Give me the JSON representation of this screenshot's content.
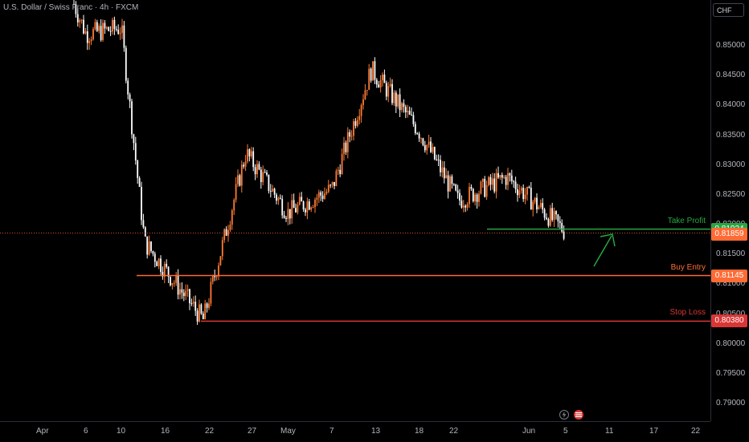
{
  "symbol_title": "U.S. Dollar / Swiss Franc · 4h · FXCM",
  "currency_button": "CHF",
  "colors": {
    "up": "#ff7a33",
    "down": "#ffffff",
    "take_profit": "#26a641",
    "buy_entry": "#ff6b35",
    "stop_loss": "#d93636",
    "last_price": "#ff6b35",
    "arrow": "#26a641"
  },
  "price_scale": {
    "ticks": [
      "0.85000",
      "0.84500",
      "0.84000",
      "0.83500",
      "0.83000",
      "0.82500",
      "0.82000",
      "0.81500",
      "0.81000",
      "0.80500",
      "0.80000",
      "0.79500",
      "0.79000"
    ]
  },
  "time_scale": {
    "ticks": [
      "Apr",
      "6",
      "10",
      "16",
      "22",
      "27",
      "May",
      "7",
      "13",
      "18",
      "22",
      "Jun",
      "5",
      "11",
      "17",
      "22"
    ]
  },
  "levels": {
    "take_profit": {
      "label": "Take Profit",
      "price": "0.81924"
    },
    "current": {
      "price": "0.81859"
    },
    "buy_entry": {
      "label": "Buy Entry",
      "price": "0.81145"
    },
    "stop_loss": {
      "label": "Stop Loss",
      "price": "0.80380"
    }
  },
  "icons": [
    "lightning-icon",
    "us-flag-icon"
  ],
  "chart_data": {
    "type": "line",
    "title": "",
    "xlabel": "",
    "ylabel": "",
    "ylim": [
      0.7865,
      0.8575
    ],
    "x": [
      "Apr 1",
      "Apr 6",
      "Apr 10",
      "Apr 16",
      "Apr 22",
      "Apr 27",
      "May 1",
      "May 7",
      "May 13",
      "May 18",
      "May 22",
      "Jun 1",
      "Jun 5"
    ],
    "series": [
      {
        "values": [
          0.857,
          0.852,
          0.853,
          0.817,
          0.804,
          0.832,
          0.822,
          0.826,
          0.846,
          0.836,
          0.824,
          0.828,
          0.8186
        ]
      }
    ],
    "horizontal_lines": [
      {
        "label": "Take Profit",
        "value": 0.81924
      },
      {
        "label": "Buy Entry",
        "value": 0.81145
      },
      {
        "label": "Stop Loss",
        "value": 0.8038
      }
    ],
    "last_price": 0.81859
  }
}
